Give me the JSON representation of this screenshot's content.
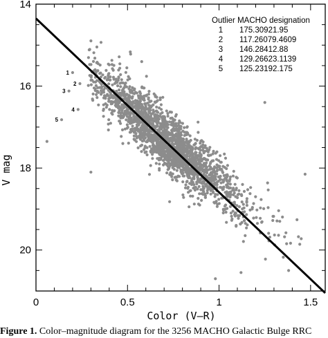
{
  "chart_data": {
    "type": "scatter",
    "title": "",
    "xlabel": "Color (V–R)",
    "ylabel": "V mag",
    "xlim": [
      0,
      1.58
    ],
    "ylim": [
      14,
      21
    ],
    "y_inverted": true,
    "xticks": [
      "0",
      "0.5",
      "1",
      "1.5"
    ],
    "yticks": [
      "14",
      "16",
      "18",
      "20"
    ],
    "grid": false,
    "point_color": "#8c8c8c",
    "line_color": "#000000",
    "fit_line": {
      "x": [
        0,
        1.58
      ],
      "y": [
        14.35,
        21.05
      ]
    },
    "cloud": {
      "description_count_rendered": 3256,
      "trend_points": [
        [
          0.35,
          15.85
        ],
        [
          0.5,
          16.5
        ],
        [
          0.75,
          17.5
        ],
        [
          1.0,
          18.4
        ],
        [
          1.25,
          19.3
        ]
      ],
      "spread_v": 0.36
    },
    "outliers": [
      {
        "label": "1",
        "x": 0.2,
        "y": 15.67
      },
      {
        "label": "2",
        "x": 0.24,
        "y": 15.94
      },
      {
        "label": "3",
        "x": 0.18,
        "y": 16.12
      },
      {
        "label": "4",
        "x": 0.23,
        "y": 16.57
      },
      {
        "label": "5",
        "x": 0.14,
        "y": 16.82
      }
    ],
    "legend": {
      "title": "Outlier MACHO designation",
      "position": "top-right",
      "entries": [
        {
          "num": "1",
          "id": "175.30921.95"
        },
        {
          "num": "2",
          "id": "117.26079.4609"
        },
        {
          "num": "3",
          "id": "146.28412.88"
        },
        {
          "num": "4",
          "id": "129.26623.1139"
        },
        {
          "num": "5",
          "id": "125.23192.175"
        }
      ]
    }
  },
  "caption": {
    "label": "Figure 1.",
    "text": "Color–magnitude diagram for the 3256 MACHO Galactic Bulge RRC"
  }
}
